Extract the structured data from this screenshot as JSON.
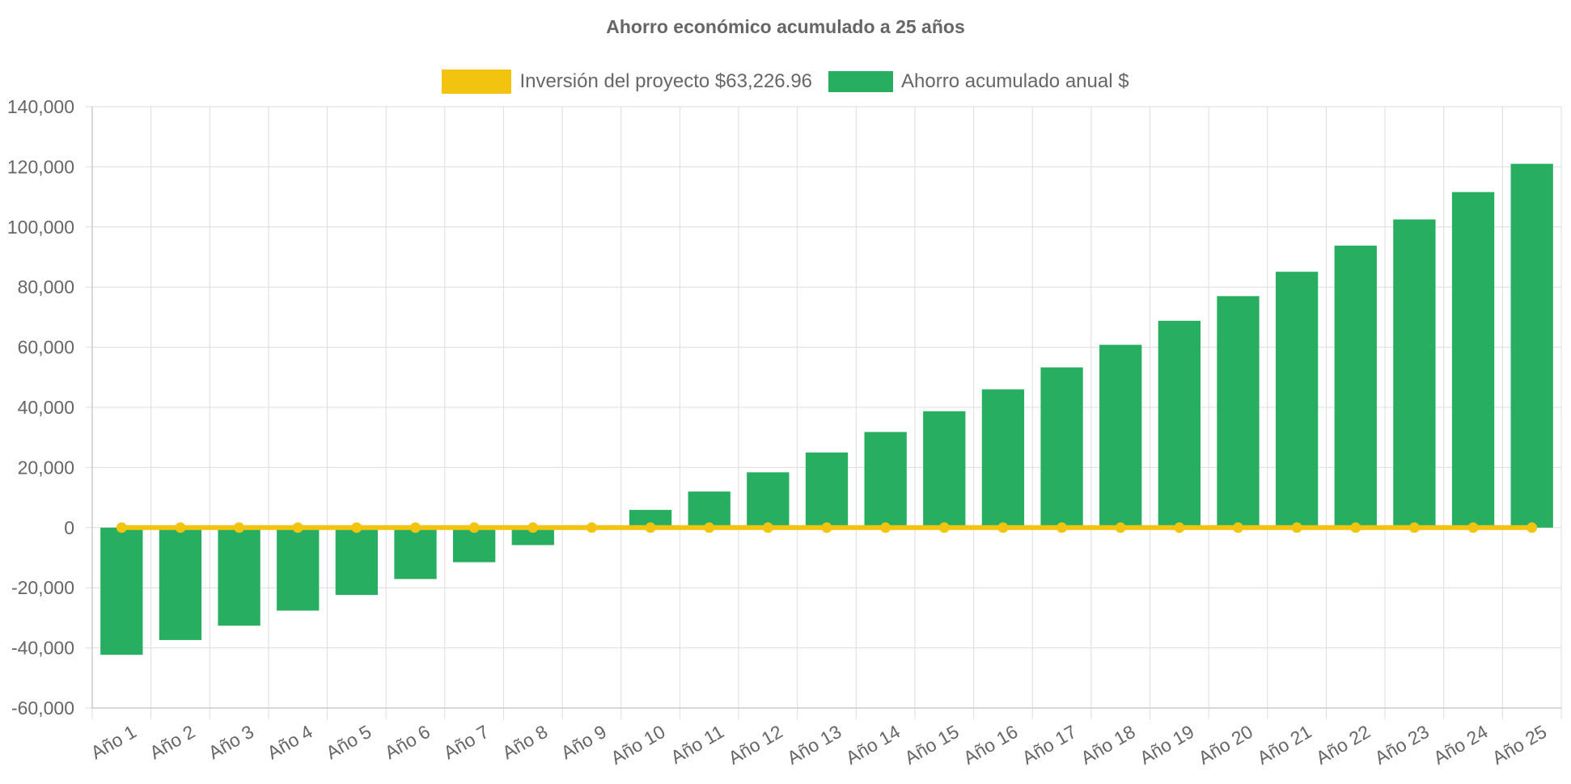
{
  "chart_data": {
    "type": "bar",
    "title": "Ahorro económico acumulado a 25 años",
    "categories": [
      "Año 1",
      "Año 2",
      "Año 3",
      "Año 4",
      "Año 5",
      "Año 6",
      "Año 7",
      "Año 8",
      "Año 9",
      "Año 10",
      "Año 11",
      "Año 12",
      "Año 13",
      "Año 14",
      "Año 15",
      "Año 16",
      "Año 17",
      "Año 18",
      "Año 19",
      "Año 20",
      "Año 21",
      "Año 22",
      "Año 23",
      "Año 24",
      "Año 25"
    ],
    "series": [
      {
        "name": "Inversión del proyecto $63,226.96",
        "type": "line",
        "color": "#f2c40f",
        "values": [
          0,
          0,
          0,
          0,
          0,
          0,
          0,
          0,
          0,
          0,
          0,
          0,
          0,
          0,
          0,
          0,
          0,
          0,
          0,
          0,
          0,
          0,
          0,
          0,
          0
        ]
      },
      {
        "name": "Ahorro acumulado anual $",
        "type": "bar",
        "color": "#27ae60",
        "values": [
          -42300,
          -37400,
          -32600,
          -27600,
          -22400,
          -17100,
          -11500,
          -5800,
          0,
          5900,
          12000,
          18400,
          25000,
          31800,
          38700,
          46000,
          53300,
          60800,
          68800,
          77000,
          85100,
          93800,
          102500,
          111600,
          121000
        ]
      }
    ],
    "yticks": [
      "140,000",
      "120,000",
      "100,000",
      "80,000",
      "60,000",
      "40,000",
      "20,000",
      "0",
      "-20,000",
      "-40,000",
      "-60,000"
    ],
    "ylim": [
      -60000,
      140000
    ],
    "grid": true,
    "legend_position": "top"
  }
}
